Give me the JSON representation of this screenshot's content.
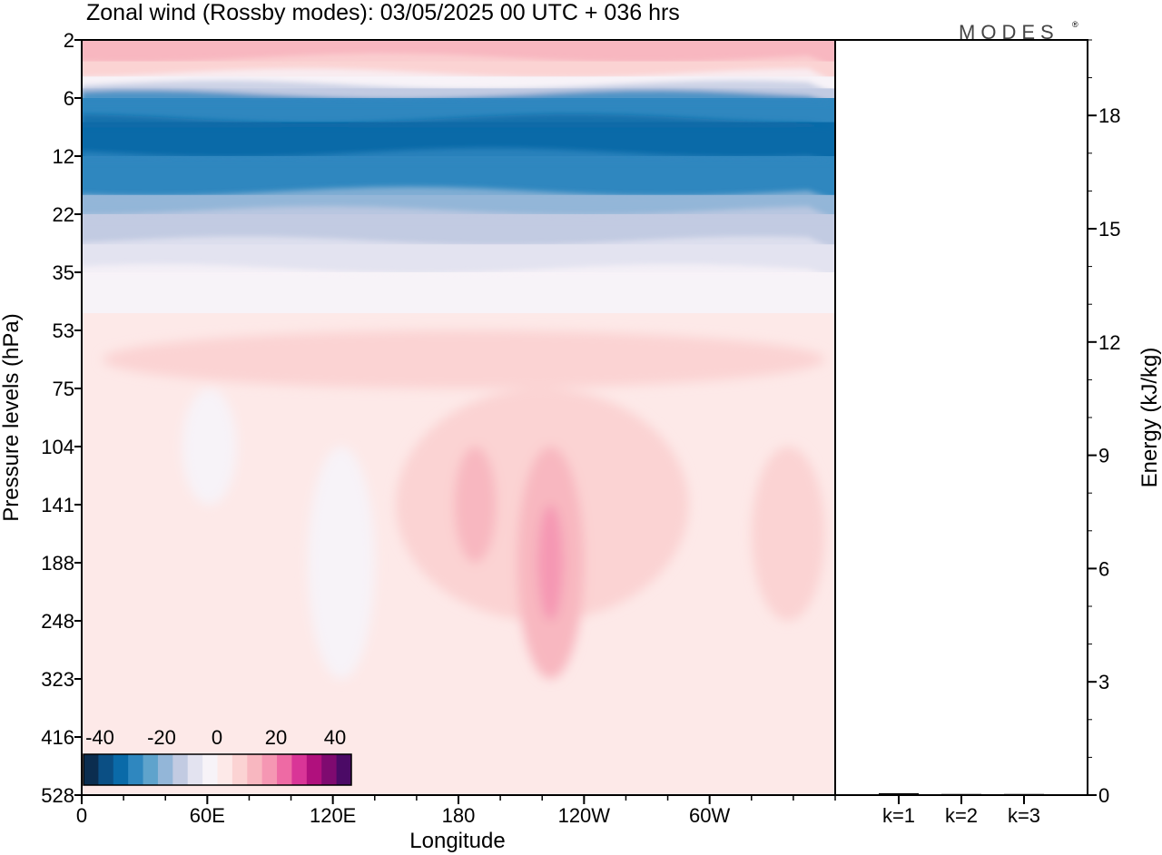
{
  "chart_data": {
    "type": "contour",
    "title": "Zonal wind (Rossby modes):  03/05/2025  00 UTC  + 036 hrs",
    "logo": "MODES",
    "logo_mark": "®",
    "main_panel": {
      "xlabel": "Longitude",
      "ylabel": "Pressure levels (hPa)",
      "x_ticks": [
        "0",
        "60E",
        "120E",
        "180",
        "120W",
        "60W"
      ],
      "x_tick_values": [
        0,
        60,
        120,
        180,
        240,
        300
      ],
      "xlim": [
        0,
        360
      ],
      "y_ticks": [
        "2",
        "6",
        "12",
        "22",
        "35",
        "53",
        "75",
        "104",
        "141",
        "188",
        "248",
        "323",
        "416",
        "528"
      ],
      "y_scale": "model levels (nonlinear, top = 2 hPa)"
    },
    "energy_panel": {
      "ylabel": "Energy (kJ/kg)",
      "y_ticks": [
        "0",
        "3",
        "6",
        "9",
        "12",
        "15",
        "18"
      ],
      "y_tick_values": [
        0,
        3,
        6,
        9,
        12,
        15,
        18
      ],
      "ylim": [
        0,
        20
      ],
      "categories": [
        "k=1",
        "k=2",
        "k=3"
      ],
      "values": [
        0.05,
        0.03,
        0.03
      ]
    },
    "colorbar": {
      "labels": [
        "-40",
        "-20",
        "0",
        "20",
        "40"
      ],
      "colors": [
        "#0b2d4f",
        "#0b4f84",
        "#0a6aa8",
        "#2f87bf",
        "#5fa3cc",
        "#93b6d8",
        "#c2cbe2",
        "#e3e3f0",
        "#f7f3f8",
        "#fde9e8",
        "#fbd3d3",
        "#f8b7c0",
        "#f597b3",
        "#ee6aa4",
        "#d93597",
        "#b0107d",
        "#7f0a70",
        "#4b0a66"
      ]
    },
    "field": {
      "upper_bands": [
        {
          "level": "2",
          "value": 14
        },
        {
          "level": "3",
          "value": 6
        },
        {
          "level": "4",
          "value": -4
        },
        {
          "level": "5",
          "value": -14
        },
        {
          "level": "6",
          "value": -26
        },
        {
          "level": "8",
          "value": -33
        },
        {
          "level": "12",
          "value": -26
        },
        {
          "level": "18",
          "value": -20
        },
        {
          "level": "22",
          "value": -14
        },
        {
          "level": "28",
          "value": -8
        },
        {
          "level": "35",
          "value": -2
        }
      ],
      "regions": [
        {
          "lon": [
            10,
            355
          ],
          "level": [
            "53",
            "75"
          ],
          "value": 6
        },
        {
          "lon": [
            150,
            290
          ],
          "level": [
            "75",
            "248"
          ],
          "value": 5
        },
        {
          "lon": [
            178,
            198
          ],
          "level": [
            "104",
            "188"
          ],
          "value": 11
        },
        {
          "lon": [
            208,
            240
          ],
          "level": [
            "104",
            "323"
          ],
          "value": 12
        },
        {
          "lon": [
            218,
            230
          ],
          "level": [
            "141",
            "248"
          ],
          "value": 18
        },
        {
          "lon": [
            48,
            74
          ],
          "level": [
            "75",
            "141"
          ],
          "value": -4
        },
        {
          "lon": [
            108,
            140
          ],
          "level": [
            "104",
            "323"
          ],
          "value": -4
        },
        {
          "lon": [
            320,
            355
          ],
          "level": [
            "104",
            "248"
          ],
          "value": 5
        }
      ]
    }
  }
}
